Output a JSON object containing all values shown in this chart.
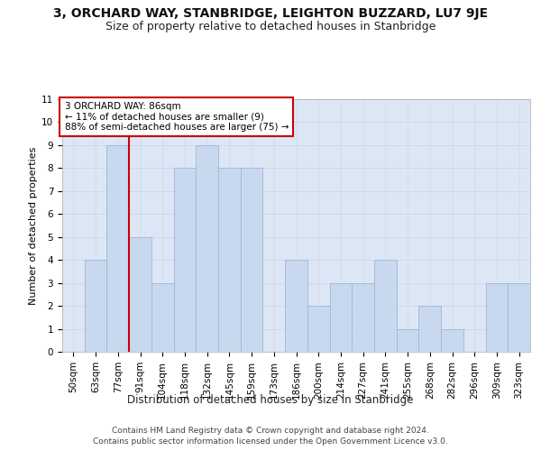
{
  "title": "3, ORCHARD WAY, STANBRIDGE, LEIGHTON BUZZARD, LU7 9JE",
  "subtitle": "Size of property relative to detached houses in Stanbridge",
  "xlabel": "Distribution of detached houses by size in Stanbridge",
  "ylabel": "Number of detached properties",
  "categories": [
    "50sqm",
    "63sqm",
    "77sqm",
    "91sqm",
    "104sqm",
    "118sqm",
    "132sqm",
    "145sqm",
    "159sqm",
    "173sqm",
    "186sqm",
    "200sqm",
    "214sqm",
    "227sqm",
    "241sqm",
    "255sqm",
    "268sqm",
    "282sqm",
    "296sqm",
    "309sqm",
    "323sqm"
  ],
  "values": [
    0,
    4,
    9,
    5,
    3,
    8,
    9,
    8,
    8,
    0,
    4,
    2,
    3,
    3,
    4,
    1,
    2,
    1,
    0,
    3,
    3
  ],
  "bar_color": "#c8d9ef",
  "bar_edge_color": "#9eb6d8",
  "reference_line_index": 2.5,
  "reference_line_color": "#cc0000",
  "annotation_text": "3 ORCHARD WAY: 86sqm\n← 11% of detached houses are smaller (9)\n88% of semi-detached houses are larger (75) →",
  "annotation_box_facecolor": "#ffffff",
  "annotation_box_edgecolor": "#cc0000",
  "ylim": [
    0,
    11
  ],
  "yticks": [
    0,
    1,
    2,
    3,
    4,
    5,
    6,
    7,
    8,
    9,
    10,
    11
  ],
  "grid_color": "#d0d8ea",
  "plot_bg_color": "#dce6f5",
  "footer_line1": "Contains HM Land Registry data © Crown copyright and database right 2024.",
  "footer_line2": "Contains public sector information licensed under the Open Government Licence v3.0.",
  "title_fontsize": 10,
  "subtitle_fontsize": 9,
  "xlabel_fontsize": 8.5,
  "ylabel_fontsize": 8,
  "tick_fontsize": 7.5,
  "annotation_fontsize": 7.5,
  "footer_fontsize": 6.5
}
